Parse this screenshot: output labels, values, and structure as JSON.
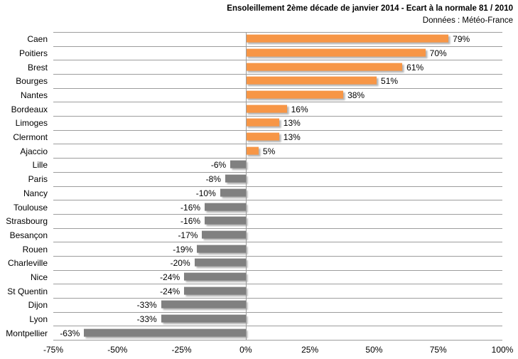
{
  "chart_data": {
    "type": "bar",
    "orientation": "horizontal",
    "title": "Ensoleillement 2ème décade de janvier 2014 - Ecart à la normale 81 / 2010",
    "subtitle": "Données : Météo-France",
    "categories": [
      "Caen",
      "Poitiers",
      "Brest",
      "Bourges",
      "Nantes",
      "Bordeaux",
      "Limoges",
      "Clermont",
      "Ajaccio",
      "Lille",
      "Paris",
      "Nancy",
      "Toulouse",
      "Strasbourg",
      "Besançon",
      "Rouen",
      "Charleville",
      "Nice",
      "St Quentin",
      "Dijon",
      "Lyon",
      "Montpellier"
    ],
    "values": [
      79,
      70,
      61,
      51,
      38,
      16,
      13,
      13,
      5,
      -6,
      -8,
      -10,
      -16,
      -16,
      -17,
      -19,
      -20,
      -24,
      -24,
      -33,
      -33,
      -63
    ],
    "value_labels": [
      "79%",
      "70%",
      "61%",
      "51%",
      "38%",
      "16%",
      "13%",
      "13%",
      "5%",
      "-6%",
      "-8%",
      "-10%",
      "-16%",
      "-16%",
      "-17%",
      "-19%",
      "-20%",
      "-24%",
      "-24%",
      "-33%",
      "-33%",
      "-63%"
    ],
    "xlim": [
      -75,
      100
    ],
    "x_tick_values": [
      -75,
      -50,
      -25,
      0,
      25,
      50,
      75,
      100
    ],
    "x_tick_labels": [
      "-75%",
      "-50%",
      "-25%",
      "0%",
      "25%",
      "50%",
      "75%",
      "100%"
    ],
    "grid": "category-separators-horizontal-only",
    "legend": "none",
    "colors": {
      "positive_bar": "#F79646",
      "negative_bar": "#808080",
      "gridline": "#9d9d9d",
      "text": "#000000",
      "background": "#ffffff"
    }
  }
}
